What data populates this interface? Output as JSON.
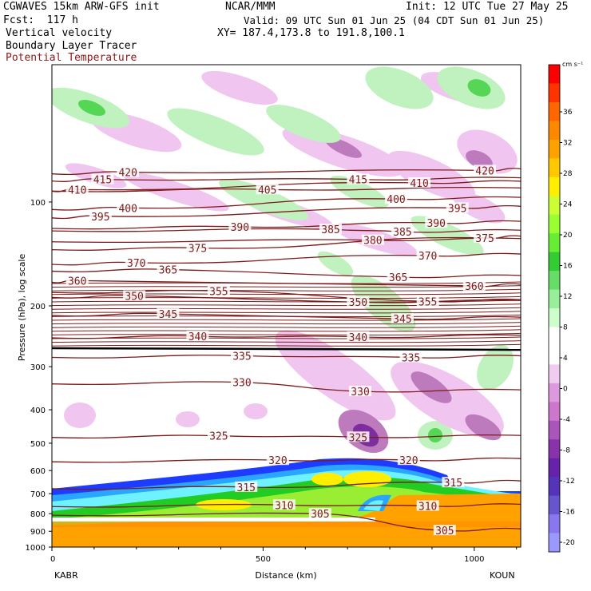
{
  "header": {
    "line1_left": "CGWAVES 15km ARW-GFS init",
    "line1_center": "NCAR/MMM",
    "line1_right": "Init: 12 UTC Tue 27 May 25",
    "line2_left": "Fcst:  117 h",
    "line2_right": "Valid: 09 UTC Sun 01 Jun 25 (04 CDT Sun 01 Jun 25)",
    "line3_left": "Vertical velocity",
    "line3_right": "XY= 187.4,173.8 to 191.8,100.1",
    "line4_left": "Boundary Layer Tracer",
    "line5_left": "Potential Temperature",
    "line5_color": "#8b1a1a"
  },
  "chart_data": {
    "type": "cross-section",
    "xlabel": "Distance (km)",
    "ylabel": "Pressure (hPa), log scale",
    "x_range": [
      0,
      1110
    ],
    "x_ticks": [
      0,
      500,
      1000
    ],
    "y_scale": "log",
    "y_range_hpa": [
      1000,
      40
    ],
    "y_ticks": [
      100,
      200,
      300,
      400,
      500,
      600,
      700,
      800,
      900,
      1000
    ],
    "left_endpoint": "KABR",
    "right_endpoint": "KOUN",
    "colorbar": {
      "unit": "cm s⁻¹",
      "labels": [
        "36",
        "32",
        "28",
        "24",
        "20",
        "16",
        "12",
        "8",
        "4",
        "0",
        "-4",
        "-8",
        "-12",
        "-16",
        "-20"
      ],
      "colors": [
        "#ff0000",
        "#ff3300",
        "#ff6600",
        "#ff8800",
        "#ffa200",
        "#ffc800",
        "#ffee00",
        "#ccff33",
        "#99ff33",
        "#66ee33",
        "#33cc33",
        "#66dd66",
        "#99ee99",
        "#ccffcc",
        "#ffffff",
        "#ffffff",
        "#f0ccf0",
        "#dd99dd",
        "#cc77cc",
        "#aa55bb",
        "#8833aa",
        "#6622aa",
        "#5533bb",
        "#6655cc",
        "#8877ee",
        "#9999ff"
      ]
    },
    "theta_labels": [
      {
        "value": 420,
        "x": 180,
        "p": 82
      },
      {
        "value": 415,
        "x": 120,
        "p": 86
      },
      {
        "value": 410,
        "x": 60,
        "p": 92
      },
      {
        "value": 400,
        "x": 180,
        "p": 104
      },
      {
        "value": 395,
        "x": 115,
        "p": 110
      },
      {
        "value": 405,
        "x": 510,
        "p": 92
      },
      {
        "value": 390,
        "x": 445,
        "p": 118
      },
      {
        "value": 385,
        "x": 660,
        "p": 120
      },
      {
        "value": 375,
        "x": 345,
        "p": 136
      },
      {
        "value": 370,
        "x": 200,
        "p": 150
      },
      {
        "value": 365,
        "x": 275,
        "p": 157
      },
      {
        "value": 360,
        "x": 60,
        "p": 169
      },
      {
        "value": 355,
        "x": 395,
        "p": 181
      },
      {
        "value": 350,
        "x": 195,
        "p": 187
      },
      {
        "value": 345,
        "x": 275,
        "p": 211
      },
      {
        "value": 340,
        "x": 345,
        "p": 245
      },
      {
        "value": 335,
        "x": 450,
        "p": 279
      },
      {
        "value": 330,
        "x": 450,
        "p": 333
      },
      {
        "value": 325,
        "x": 395,
        "p": 476
      },
      {
        "value": 320,
        "x": 535,
        "p": 560
      },
      {
        "value": 315,
        "x": 460,
        "p": 670
      },
      {
        "value": 310,
        "x": 550,
        "p": 755
      },
      {
        "value": 305,
        "x": 635,
        "p": 800
      },
      {
        "value": 415,
        "x": 725,
        "p": 86
      },
      {
        "value": 410,
        "x": 870,
        "p": 88
      },
      {
        "value": 420,
        "x": 1025,
        "p": 81
      },
      {
        "value": 400,
        "x": 815,
        "p": 98
      },
      {
        "value": 395,
        "x": 960,
        "p": 104
      },
      {
        "value": 390,
        "x": 910,
        "p": 115
      },
      {
        "value": 380,
        "x": 760,
        "p": 129
      },
      {
        "value": 385,
        "x": 830,
        "p": 122
      },
      {
        "value": 375,
        "x": 1025,
        "p": 127
      },
      {
        "value": 370,
        "x": 890,
        "p": 143
      },
      {
        "value": 365,
        "x": 820,
        "p": 165
      },
      {
        "value": 360,
        "x": 1000,
        "p": 175
      },
      {
        "value": 350,
        "x": 725,
        "p": 195
      },
      {
        "value": 355,
        "x": 890,
        "p": 194
      },
      {
        "value": 345,
        "x": 830,
        "p": 218
      },
      {
        "value": 340,
        "x": 725,
        "p": 246
      },
      {
        "value": 335,
        "x": 850,
        "p": 282
      },
      {
        "value": 330,
        "x": 730,
        "p": 354
      },
      {
        "value": 325,
        "x": 725,
        "p": 480
      },
      {
        "value": 320,
        "x": 845,
        "p": 560
      },
      {
        "value": 315,
        "x": 950,
        "p": 650
      },
      {
        "value": 310,
        "x": 890,
        "p": 760
      },
      {
        "value": 305,
        "x": 930,
        "p": 895
      }
    ]
  }
}
